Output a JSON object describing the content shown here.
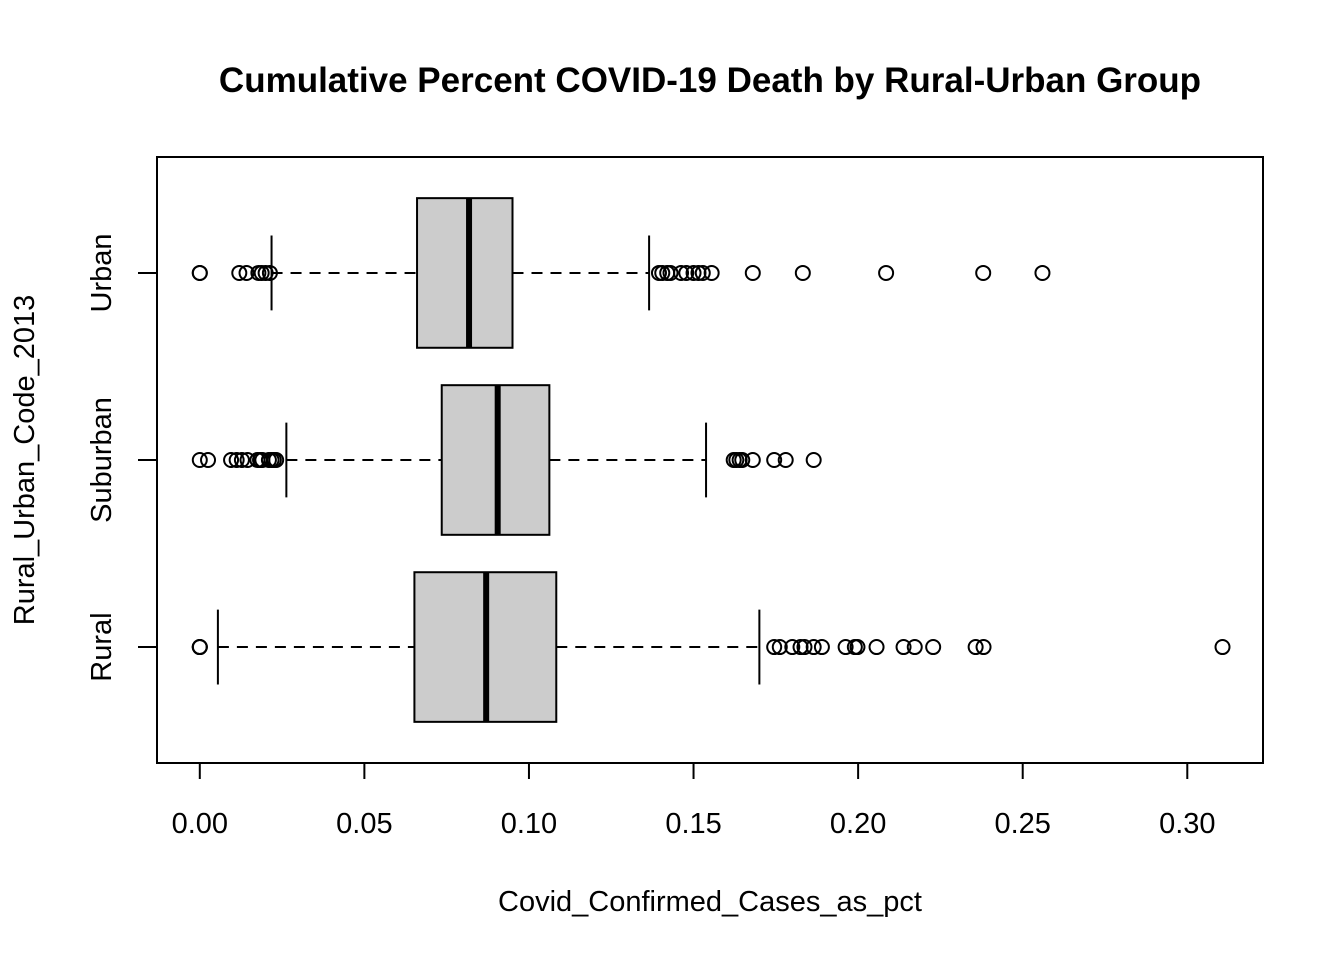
{
  "chart_data": {
    "type": "boxplot",
    "orientation": "horizontal",
    "title": "Cumulative Percent COVID-19 Death by Rural-Urban Group",
    "xlabel": "Covid_Confirmed_Cases_as_pct",
    "ylabel": "Rural_Urban_Code_2013",
    "xlim": [
      -0.013,
      0.323
    ],
    "x_ticks": [
      0.0,
      0.05,
      0.1,
      0.15,
      0.2,
      0.25,
      0.3
    ],
    "x_tick_labels": [
      "0.00",
      "0.05",
      "0.10",
      "0.15",
      "0.20",
      "0.25",
      "0.30"
    ],
    "categories": [
      "Rural",
      "Suburban",
      "Urban"
    ],
    "box_fill": "#cccccc",
    "grid": false,
    "legend": "none",
    "series": [
      {
        "category": "Rural",
        "whisker_low": 0.0055,
        "q1": 0.0652,
        "median": 0.087,
        "q3": 0.1083,
        "whisker_high": 0.17,
        "outliers": [
          0.0,
          0.0,
          0.0,
          0.1745,
          0.1762,
          0.18,
          0.1825,
          0.1837,
          0.1865,
          0.189,
          0.1962,
          0.199,
          0.1998,
          0.2056,
          0.2138,
          0.2172,
          0.2228,
          0.2357,
          0.2381,
          0.3107
        ]
      },
      {
        "category": "Suburban",
        "whisker_low": 0.0263,
        "q1": 0.0735,
        "median": 0.0905,
        "q3": 0.1062,
        "whisker_high": 0.1538,
        "outliers": [
          0.0,
          0.0025,
          0.0095,
          0.0112,
          0.0128,
          0.0145,
          0.0175,
          0.0183,
          0.019,
          0.021,
          0.0218,
          0.0225,
          0.0232,
          0.1622,
          0.163,
          0.164,
          0.1648,
          0.168,
          0.1745,
          0.178,
          0.1865
        ]
      },
      {
        "category": "Urban",
        "whisker_low": 0.0218,
        "q1": 0.066,
        "median": 0.0818,
        "q3": 0.095,
        "whisker_high": 0.1365,
        "outliers": [
          0.0,
          0.0,
          0.012,
          0.0142,
          0.0178,
          0.0188,
          0.02,
          0.0213,
          0.1395,
          0.1405,
          0.142,
          0.143,
          0.1462,
          0.1478,
          0.15,
          0.1515,
          0.1528,
          0.1555,
          0.168,
          0.1832,
          0.2085,
          0.238,
          0.256
        ]
      }
    ]
  }
}
